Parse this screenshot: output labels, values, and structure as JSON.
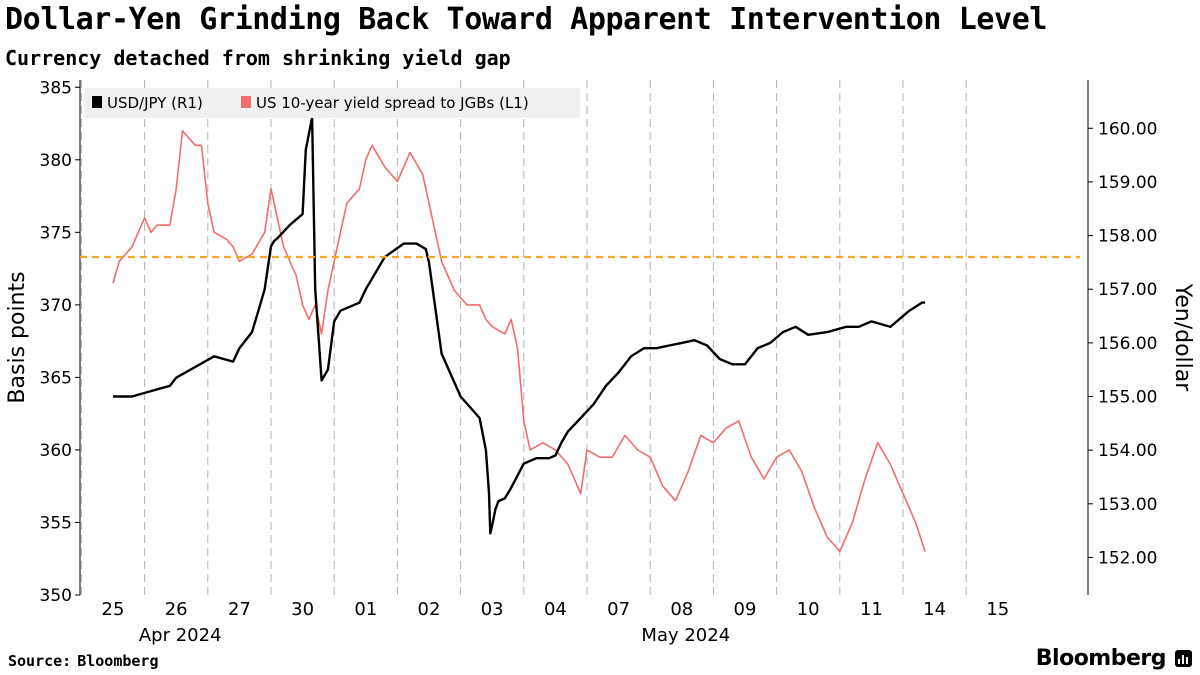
{
  "header": {
    "title": "Dollar-Yen Grinding Back Toward Apparent Intervention Level",
    "subtitle": "Currency detached from shrinking yield gap"
  },
  "footer": {
    "source_label": "Source:",
    "source_value": "Bloomberg",
    "brand": "Bloomberg"
  },
  "colors": {
    "usdjpy": "#000000",
    "spread": "#f26d6d",
    "reference_line": "#f5a623",
    "grid": "#b3b3b3",
    "legend_bg": "#f0f0f0"
  },
  "chart_data": {
    "type": "line",
    "title": "Dollar-Yen Grinding Back Toward Apparent Intervention Level",
    "subtitle": "Currency detached from shrinking yield gap",
    "legend": {
      "placement": "top-left",
      "entries": [
        "USD/JPY (R1)",
        "US 10-year yield spread to JGBs (L1)"
      ]
    },
    "x_axis": {
      "type": "trading-day",
      "tick_labels": [
        "25",
        "26",
        "27",
        "30",
        "01",
        "02",
        "03",
        "04",
        "07",
        "08",
        "09",
        "10",
        "11",
        "14",
        "15"
      ],
      "month_labels": [
        {
          "label": "Apr 2024",
          "at_tick": "26"
        },
        {
          "label": "May 2024",
          "at_tick": "08"
        }
      ]
    },
    "y_left": {
      "label": "Basis points",
      "range": [
        350,
        385.5
      ],
      "ticks": [
        350,
        355,
        360,
        365,
        370,
        375,
        380,
        385
      ]
    },
    "y_right": {
      "label": "Yen/dollar",
      "range": [
        151.3,
        160.9
      ],
      "ticks": [
        "152.00",
        "153.00",
        "154.00",
        "155.00",
        "156.00",
        "157.00",
        "158.00",
        "159.00",
        "160.00"
      ]
    },
    "grid": {
      "vertical": true,
      "horizontal": false,
      "style": "dashed"
    },
    "reference_line": {
      "axis": "right",
      "value": 157.6,
      "style": "dashed",
      "color": "#f5a623"
    },
    "series": [
      {
        "name": "USD/JPY (R1)",
        "axis": "right",
        "color": "#000000",
        "x": [
          0,
          0.3,
          0.6,
          0.9,
          1.0,
          1.3,
          1.6,
          1.9,
          2.0,
          2.2,
          2.3,
          2.4,
          2.45,
          2.5,
          2.55,
          2.6,
          2.8,
          3.0,
          3.05,
          3.15,
          3.2,
          3.3,
          3.4,
          3.5,
          3.6,
          3.8,
          3.9,
          4.0,
          4.3,
          4.6,
          4.8,
          4.95,
          5.0,
          5.2,
          5.5,
          5.8,
          5.9,
          5.95,
          5.97,
          6.0,
          6.05,
          6.1,
          6.2,
          6.3,
          6.5,
          6.7,
          6.9,
          7.0,
          7.1,
          7.2,
          7.4,
          7.6,
          7.8,
          8.0,
          8.2,
          8.4,
          8.6,
          8.8,
          9.0,
          9.2,
          9.4,
          9.6,
          9.8,
          10.0,
          10.2,
          10.4,
          10.6,
          10.8,
          11.0,
          11.3,
          11.6,
          11.8,
          12.0,
          12.3,
          12.6,
          12.8,
          12.85
        ],
        "values": [
          155.0,
          155.0,
          155.1,
          155.2,
          155.35,
          155.55,
          155.75,
          155.65,
          155.9,
          156.2,
          156.6,
          157.0,
          157.4,
          157.8,
          157.9,
          157.95,
          158.2,
          158.4,
          159.6,
          160.2,
          157.0,
          155.3,
          155.5,
          156.4,
          156.6,
          156.7,
          156.75,
          157.0,
          157.6,
          157.85,
          157.85,
          157.75,
          157.5,
          155.8,
          155.0,
          154.6,
          154.0,
          153.2,
          152.45,
          152.6,
          152.9,
          153.05,
          153.1,
          153.3,
          153.75,
          153.85,
          153.85,
          153.9,
          154.15,
          154.35,
          154.6,
          154.85,
          155.2,
          155.45,
          155.75,
          155.9,
          155.9,
          155.95,
          156.0,
          156.05,
          155.95,
          155.7,
          155.6,
          155.6,
          155.9,
          156.0,
          156.2,
          156.3,
          156.15,
          156.2,
          156.3,
          156.3,
          156.4,
          156.3,
          156.6,
          156.75,
          156.75
        ]
      },
      {
        "name": "US 10-year yield spread to JGBs (L1)",
        "axis": "left",
        "color": "#f26d6d",
        "x": [
          0,
          0.1,
          0.3,
          0.5,
          0.6,
          0.7,
          0.9,
          1.0,
          1.1,
          1.3,
          1.4,
          1.5,
          1.6,
          1.8,
          1.9,
          2.0,
          2.2,
          2.4,
          2.5,
          2.7,
          2.9,
          3.0,
          3.1,
          3.2,
          3.3,
          3.4,
          3.5,
          3.7,
          3.9,
          4.0,
          4.1,
          4.3,
          4.5,
          4.7,
          4.9,
          5.0,
          5.2,
          5.4,
          5.6,
          5.8,
          5.9,
          6.0,
          6.2,
          6.3,
          6.4,
          6.5,
          6.6,
          6.8,
          7.0,
          7.2,
          7.4,
          7.5,
          7.7,
          7.9,
          8.1,
          8.3,
          8.5,
          8.7,
          8.9,
          9.1,
          9.3,
          9.5,
          9.7,
          9.9,
          10.1,
          10.3,
          10.5,
          10.7,
          10.9,
          11.1,
          11.3,
          11.5,
          11.7,
          11.9,
          12.1,
          12.3,
          12.5,
          12.7,
          12.85
        ],
        "values": [
          371.5,
          373.0,
          374.0,
          376.0,
          375.0,
          375.5,
          375.5,
          378.0,
          382.0,
          381.0,
          381.0,
          377.0,
          375.0,
          374.5,
          374.0,
          373.0,
          373.5,
          375.0,
          378.0,
          374.0,
          372.0,
          370.0,
          369.0,
          370.0,
          368.0,
          371.0,
          373.0,
          377.0,
          378.0,
          380.0,
          381.0,
          379.5,
          378.5,
          380.5,
          379.0,
          377.0,
          373.0,
          371.0,
          370.0,
          370.0,
          369.0,
          368.5,
          368.0,
          369.0,
          367.0,
          362.0,
          360.0,
          360.5,
          360.0,
          359.0,
          357.0,
          360.0,
          359.5,
          359.5,
          361.0,
          360.0,
          359.5,
          357.5,
          356.5,
          358.5,
          361.0,
          360.5,
          361.5,
          362.0,
          359.5,
          358.0,
          359.5,
          360.0,
          358.5,
          356.0,
          354.0,
          353.0,
          355.0,
          358.0,
          360.5,
          359.0,
          357.0,
          355.0,
          353.0
        ]
      }
    ]
  }
}
